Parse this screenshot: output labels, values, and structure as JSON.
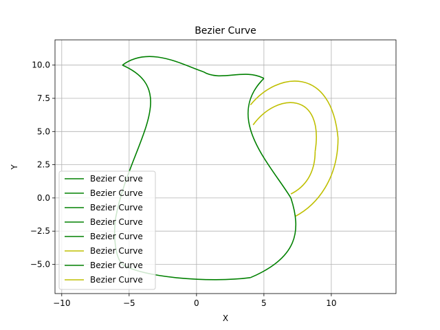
{
  "chart_data": {
    "type": "line",
    "title": "Bezier Curve",
    "xlabel": "X",
    "ylabel": "Y",
    "xlim": [
      -10.5,
      14.8
    ],
    "ylim": [
      -7.2,
      11.9
    ],
    "xticks": [
      -10,
      -5,
      0,
      5,
      10
    ],
    "xtick_labels": [
      "−10",
      "−5",
      "0",
      "5",
      "10"
    ],
    "yticks": [
      -5.0,
      -2.5,
      0.0,
      2.5,
      5.0,
      7.5,
      10.0
    ],
    "ytick_labels": [
      "−5.0",
      "−2.5",
      "0.0",
      "2.5",
      "5.0",
      "7.5",
      "10.0"
    ],
    "grid": true,
    "legend_position": "lower-left",
    "colors": {
      "green": "#008000",
      "yellow": "#bfbf00"
    },
    "series": [
      {
        "name": "Bezier Curve",
        "color": "#008000",
        "control_points": [
          [
            -5.5,
            10.0
          ],
          [
            -3.5,
            11.5
          ],
          [
            -1.0,
            10.0
          ],
          [
            0.5,
            9.5
          ]
        ]
      },
      {
        "name": "Bezier Curve",
        "color": "#008000",
        "control_points": [
          [
            0.5,
            9.5
          ],
          [
            1.8,
            8.7
          ],
          [
            3.5,
            9.8
          ],
          [
            5.0,
            9.0
          ]
        ]
      },
      {
        "name": "Bezier Curve",
        "color": "#008000",
        "control_points": [
          [
            5.0,
            9.0
          ],
          [
            2.0,
            6.0
          ],
          [
            5.5,
            2.5
          ],
          [
            7.0,
            0.0
          ]
        ]
      },
      {
        "name": "Bezier Curve",
        "color": "#008000",
        "control_points": [
          [
            7.0,
            0.0
          ],
          [
            7.8,
            -2.5
          ],
          [
            7.5,
            -4.5
          ],
          [
            4.0,
            -6.0
          ]
        ]
      },
      {
        "name": "Bezier Curve",
        "color": "#008000",
        "control_points": [
          [
            4.0,
            -6.0
          ],
          [
            1.0,
            -6.4
          ],
          [
            -4.0,
            -6.0
          ],
          [
            -5.5,
            -5.0
          ]
        ]
      },
      {
        "name": "Bezier Curve",
        "color": "#bfbf00",
        "control_points": [
          [
            4.0,
            7.0
          ],
          [
            6.0,
            9.5
          ],
          [
            10.0,
            10.0
          ],
          [
            10.5,
            4.5
          ]
        ]
      },
      {
        "name": "Bezier Curve",
        "color": "#008000",
        "control_points": [
          [
            -5.5,
            10.0
          ],
          [
            -1.0,
            8.0
          ],
          [
            -5.0,
            4.0
          ],
          [
            -6.0,
            -1.5
          ]
        ]
      },
      {
        "name": "Bezier Curve",
        "color": "#bfbf00",
        "control_points": [
          [
            4.2,
            5.5
          ],
          [
            6.0,
            8.0
          ],
          [
            9.5,
            8.0
          ],
          [
            8.8,
            3.5
          ]
        ]
      }
    ],
    "extra_segments": [
      {
        "color": "#bfbf00",
        "control_points": [
          [
            10.5,
            4.5
          ],
          [
            10.5,
            1.5
          ],
          [
            9.0,
            -0.5
          ],
          [
            7.3,
            -1.4
          ]
        ]
      },
      {
        "color": "#bfbf00",
        "control_points": [
          [
            8.8,
            3.5
          ],
          [
            8.8,
            1.8
          ],
          [
            8.0,
            0.8
          ],
          [
            7.0,
            0.3
          ]
        ]
      },
      {
        "color": "#008000",
        "control_points": [
          [
            -6.0,
            -1.5
          ],
          [
            -6.2,
            -3.0
          ],
          [
            -6.0,
            -4.5
          ],
          [
            -5.5,
            -5.0
          ]
        ]
      }
    ]
  }
}
